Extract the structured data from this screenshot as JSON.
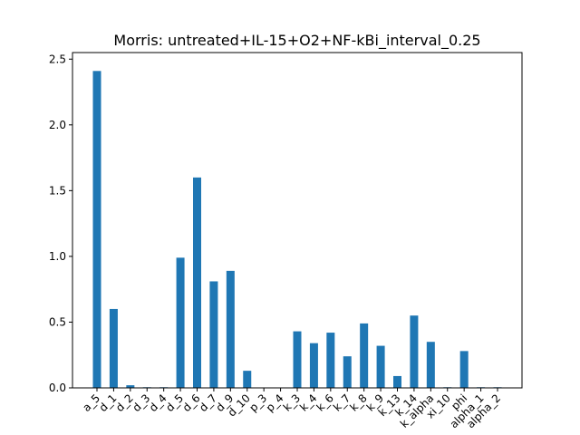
{
  "chart_data": {
    "type": "bar",
    "title": "Morris: untreated+IL-15+O2+NF-kBi_interval_0.25",
    "xlabel": "",
    "ylabel": "",
    "categories": [
      "a_5",
      "d_1",
      "d_2",
      "d_3",
      "d_4",
      "d_5",
      "d_6",
      "d_7",
      "d_9",
      "d_10",
      "p_3",
      "p_4",
      "k_3",
      "k_4",
      "k_6",
      "k_7",
      "k_8",
      "k_9",
      "k_13",
      "k_14",
      "k_alpha",
      "xi_10",
      "phi",
      "alpha_1",
      "alpha_2"
    ],
    "values": [
      2.41,
      0.6,
      0.02,
      0.005,
      0.005,
      0.99,
      1.6,
      0.81,
      0.89,
      0.13,
      0.0,
      0.0,
      0.43,
      0.34,
      0.42,
      0.24,
      0.49,
      0.32,
      0.09,
      0.55,
      0.35,
      0.005,
      0.28,
      0.005,
      0.005
    ],
    "ylim": [
      0,
      2.55
    ],
    "yticks": [
      0.0,
      0.5,
      1.0,
      1.5,
      2.0,
      2.5
    ],
    "ytick_labels": [
      "0.0",
      "0.5",
      "1.0",
      "1.5",
      "2.0",
      "2.5"
    ],
    "bar_color": "#1f77b4",
    "grid": false,
    "legend": "none"
  }
}
